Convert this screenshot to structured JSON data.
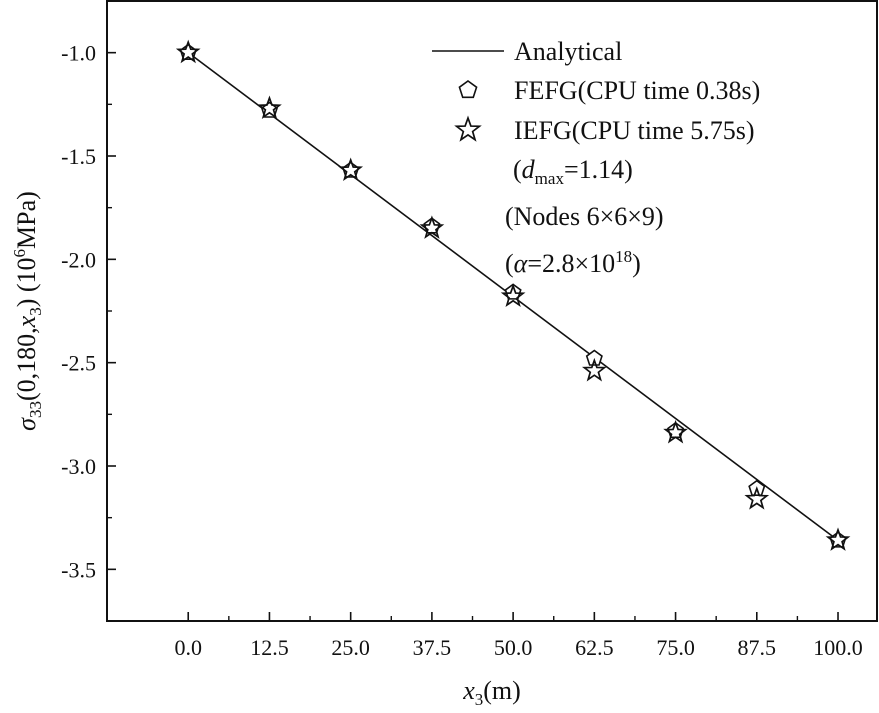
{
  "chart_data": {
    "type": "line",
    "x": [
      0,
      12.5,
      25,
      37.5,
      50,
      62.5,
      75,
      87.5,
      100
    ],
    "series": [
      {
        "name": "Analytical",
        "style": "line",
        "points": [
          [
            0,
            -1.0
          ],
          [
            100,
            -3.36
          ]
        ]
      },
      {
        "name": "FEFG(CPU time 0.38s)",
        "style": "pentagon",
        "values": [
          -1.0,
          -1.28,
          -1.57,
          -1.84,
          -2.16,
          -2.48,
          -2.83,
          -3.11,
          -3.36
        ]
      },
      {
        "name": "IEFG(CPU time 5.75s)",
        "style": "star",
        "values": [
          -1.0,
          -1.27,
          -1.57,
          -1.85,
          -2.18,
          -2.54,
          -2.84,
          -3.16,
          -3.36
        ]
      }
    ],
    "xlim": [
      -12.5,
      106
    ],
    "ylim": [
      -3.75,
      -0.75
    ],
    "xticks": [
      0,
      12.5,
      25,
      37.5,
      50,
      62.5,
      75,
      87.5,
      100
    ],
    "xtick_labels": [
      "0.0",
      "12.5",
      "25.0",
      "37.5",
      "50.0",
      "62.5",
      "75.0",
      "87.5",
      "100.0"
    ],
    "yticks": [
      -1.0,
      -1.5,
      -2.0,
      -2.5,
      -3.0,
      -3.5
    ],
    "ytick_labels": [
      "-1.0",
      "-1.5",
      "-2.0",
      "-2.5",
      "-3.0",
      "-3.5"
    ],
    "xlabel": {
      "var": "x",
      "sub": "3",
      "unit": "(m)"
    },
    "ylabel": {
      "sym": "σ",
      "sub": "33",
      "args_pre": "(0,180,",
      "arg_var": "x",
      "arg_sub": "3",
      "args_post": ") (10",
      "unit_exp": "6",
      "unit_post": "MPa)"
    },
    "annotations": {
      "dmax": {
        "open": "(",
        "var": "d",
        "sub": "max",
        "rest": "=1.14)"
      },
      "nodes": "(Nodes 6×6×9)",
      "alpha": {
        "open": "(",
        "var": "α",
        "rest": "=2.8×10",
        "exp": "18",
        "close": ")"
      }
    },
    "grid": false,
    "legend_position": "top-right",
    "colors": {
      "line": "#111111",
      "marker_stroke": "#111111",
      "marker_fill": "#ffffff"
    }
  }
}
